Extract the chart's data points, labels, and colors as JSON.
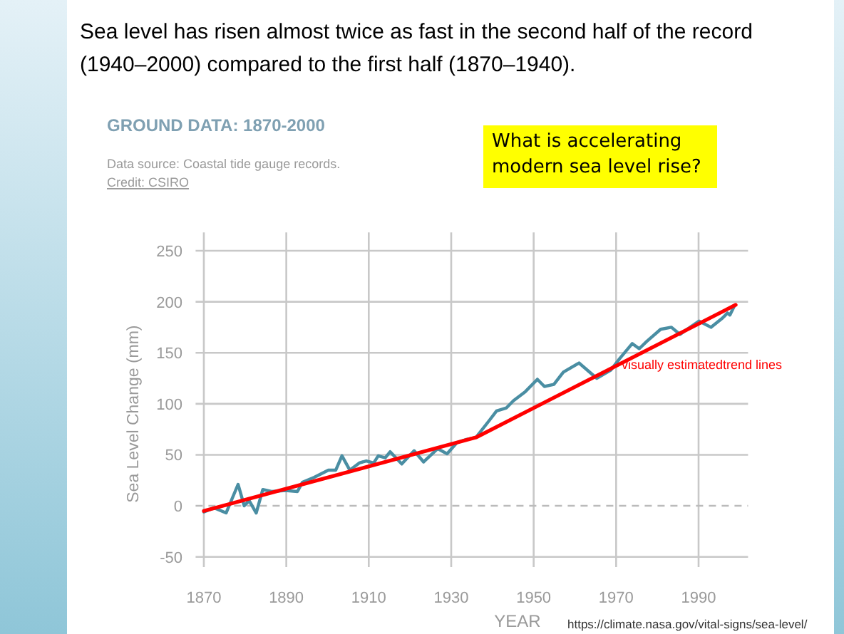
{
  "chart_data": {
    "type": "line",
    "title": "Sea level has risen almost twice as fast in the second half of the record (1940–2000) compared to the first half (1870–1940).",
    "subtitle": "GROUND DATA: 1870-2000",
    "xlabel": "YEAR",
    "ylabel": "Sea Level Change (mm)",
    "annotations": [
      "Data source: Coastal tide gauge records.",
      "Credit: CSIRO",
      "What is accelerating modern sea level rise?",
      "visually estimatedtrend lines",
      "https://climate.nasa.gov/vital-signs/sea-level/"
    ],
    "series": [
      {
        "color": "#4a8ea3",
        "x": [
          1870,
          1872.5,
          1875.4,
          1878.3,
          1879.8,
          1881,
          1882.7,
          1884.3,
          1886.4,
          1889.8,
          1892.7,
          1893.9,
          1896.8,
          1900.2,
          1902,
          1903.5,
          1905.4,
          1907.7,
          1909.4,
          1911.2,
          1912.3,
          1914,
          1915.2,
          1918,
          1921,
          1923.3,
          1926.7,
          1929,
          1931.4,
          1933.7,
          1936,
          1939.3,
          1941,
          1943.4,
          1945.1,
          1948,
          1950.9,
          1952.6,
          1954.9,
          1957.2,
          1961,
          1965.3,
          1968.7,
          1971,
          1973.9,
          1975.6,
          1977.4,
          1980.8,
          1983.4,
          1985.5,
          1987.2,
          1990.1,
          1993,
          1995.8,
          1997,
          1997.6,
          1998.7
        ],
        "values": [
          -6,
          -2,
          -7,
          21,
          0,
          5,
          -7,
          16,
          14,
          15,
          14,
          23,
          28,
          35,
          35,
          49,
          35,
          42,
          44,
          42,
          49,
          47,
          53,
          41,
          54,
          43,
          56,
          51,
          62,
          65,
          67,
          84,
          93,
          96,
          103,
          112,
          124,
          117,
          119,
          131,
          140,
          125,
          133,
          145,
          159,
          154,
          161,
          173,
          175,
          168,
          173,
          181,
          175,
          184,
          189,
          187,
          196
        ]
      },
      {
        "color": "#ff0000",
        "x": [
          1870,
          1936,
          1999
        ],
        "values": [
          -5,
          67,
          197
        ]
      }
    ],
    "xlim": [
      1868,
      2002
    ],
    "xticks": [
      1870,
      1890,
      1910,
      1930,
      1950,
      1970,
      1990
    ],
    "ylim": [
      -60,
      268
    ],
    "yticks": [
      -50,
      0,
      50,
      100,
      150,
      200,
      250
    ],
    "grid": true,
    "marker": "none",
    "line_style": "solid",
    "ref_lines": [
      {
        "axis": "y",
        "value": 0,
        "color": "#bbbbbb",
        "line_style": "dashed"
      }
    ]
  }
}
